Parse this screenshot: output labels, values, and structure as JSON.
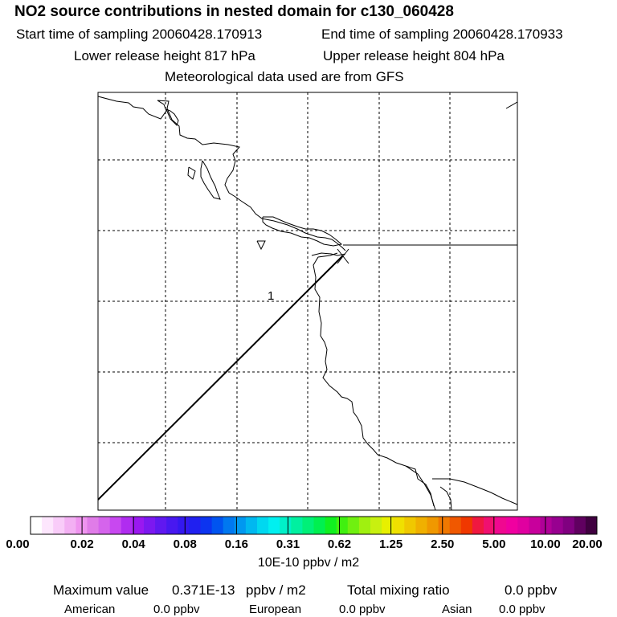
{
  "title": "NO2 source contributions in nested domain for c130_060428",
  "header": {
    "start_label": "Start time of sampling 20060428.170913",
    "end_label": "End time of sampling 20060428.170933",
    "lower_label": "Lower release height  817 hPa",
    "upper_label": "Upper release height  804 hPa",
    "met_label": "Meteorological data used are from GFS"
  },
  "map": {
    "contour_label": "1",
    "flight_track_color": "#000000"
  },
  "colorbar": {
    "colors": [
      "#ffffff",
      "#fde6fd",
      "#f9ccf9",
      "#f3b0f3",
      "#ef94ef",
      "#e07ce8",
      "#d564ec",
      "#c848f0",
      "#b02cf0",
      "#9a18f0",
      "#7c18f0",
      "#6018f0",
      "#4818f0",
      "#3418f0",
      "#2020f0",
      "#0c34f0",
      "#0054f0",
      "#0078f0",
      "#0098f0",
      "#00b8f0",
      "#00d8f0",
      "#00f0f0",
      "#00f0c8",
      "#00f0a0",
      "#00f078",
      "#00f050",
      "#10f020",
      "#40f010",
      "#70f010",
      "#a0f010",
      "#c8f010",
      "#e8f000",
      "#f0e000",
      "#f0c800",
      "#f0b000",
      "#f09800",
      "#f07800",
      "#f05800",
      "#f03800",
      "#f01840",
      "#f01070",
      "#f00890",
      "#f000a0",
      "#e000a0",
      "#c8009c",
      "#b00098",
      "#980090",
      "#800080",
      "#600060",
      "#400040"
    ],
    "ticks": [
      "0.00",
      "0.02",
      "0.04",
      "0.08",
      "0.16",
      "0.31",
      "0.62",
      "1.25",
      "2.50",
      "5.00",
      "10.00",
      "20.00"
    ],
    "units": "10E-10 ppbv / m2"
  },
  "footer": {
    "max_label": "Maximum value",
    "max_value": "0.371E-13",
    "max_unit": "ppbv / m2",
    "total_label": "Total mixing ratio",
    "total_value": "0.0 ppbv",
    "american_label": "American",
    "american_value": "0.0 ppbv",
    "european_label": "European",
    "european_value": "0.0 ppbv",
    "asian_label": "Asian",
    "asian_value": "0.0 ppbv"
  }
}
